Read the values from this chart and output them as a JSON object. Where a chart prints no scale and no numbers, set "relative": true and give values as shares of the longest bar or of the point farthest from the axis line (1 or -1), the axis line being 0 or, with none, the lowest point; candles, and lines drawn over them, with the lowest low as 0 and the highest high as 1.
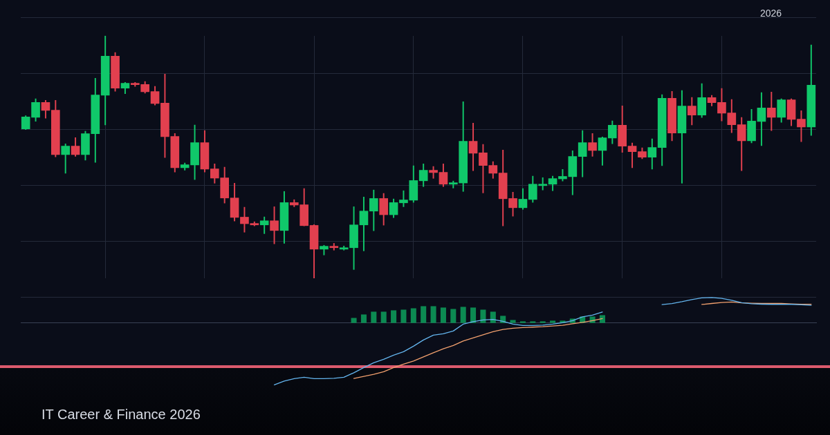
{
  "chart_data": [
    {
      "type": "candlestick",
      "relative": true,
      "grid": true,
      "categories": [
        null,
        null,
        null,
        null,
        null,
        null,
        null,
        null,
        null,
        null,
        null,
        null,
        null,
        null,
        null,
        null,
        null,
        null,
        null,
        null,
        null,
        null,
        null,
        null,
        null,
        null,
        null,
        null,
        null,
        null,
        null,
        null,
        null,
        null,
        null,
        null,
        null,
        null,
        null,
        null,
        null,
        null,
        null,
        null,
        null,
        null,
        null,
        null,
        null,
        null,
        null,
        null,
        null,
        null,
        null,
        null,
        null,
        null,
        null,
        null,
        null,
        null,
        null,
        null,
        null,
        null,
        null,
        null,
        null,
        null,
        null,
        null,
        null,
        null,
        null,
        null,
        null,
        null,
        null,
        null
      ],
      "ohlc": [
        [
          0.615,
          0.67,
          0.613,
          0.666
        ],
        [
          0.663,
          0.74,
          0.647,
          0.726
        ],
        [
          0.726,
          0.734,
          0.66,
          0.691
        ],
        [
          0.694,
          0.734,
          0.501,
          0.509
        ],
        [
          0.509,
          0.554,
          0.433,
          0.546
        ],
        [
          0.546,
          0.58,
          0.503,
          0.509
        ],
        [
          0.509,
          0.606,
          0.487,
          0.597
        ],
        [
          0.595,
          0.825,
          0.478,
          0.757
        ],
        [
          0.754,
          1.0,
          0.632,
          0.917
        ],
        [
          0.917,
          0.931,
          0.771,
          0.783
        ],
        [
          0.783,
          0.808,
          0.761,
          0.805
        ],
        [
          0.805,
          0.808,
          0.791,
          0.797
        ],
        [
          0.8,
          0.811,
          0.763,
          0.768
        ],
        [
          0.771,
          0.791,
          0.714,
          0.72
        ],
        [
          0.723,
          0.842,
          0.498,
          0.583
        ],
        [
          0.586,
          0.597,
          0.438,
          0.455
        ],
        [
          0.455,
          0.475,
          0.446,
          0.469
        ],
        [
          0.466,
          0.632,
          0.407,
          0.56
        ],
        [
          0.56,
          0.609,
          0.438,
          0.449
        ],
        [
          0.452,
          0.472,
          0.392,
          0.412
        ],
        [
          0.415,
          0.458,
          0.31,
          0.33
        ],
        [
          0.332,
          0.392,
          0.236,
          0.25
        ],
        [
          0.253,
          0.293,
          0.19,
          0.224
        ],
        [
          0.227,
          0.233,
          0.216,
          0.219
        ],
        [
          0.219,
          0.253,
          0.184,
          0.238
        ],
        [
          0.238,
          0.295,
          0.142,
          0.196
        ],
        [
          0.196,
          0.358,
          0.144,
          0.313
        ],
        [
          0.313,
          0.324,
          0.295,
          0.301
        ],
        [
          0.304,
          0.37,
          0.216,
          0.216
        ],
        [
          0.219,
          0.221,
          0.0,
          0.119
        ],
        [
          0.119,
          0.136,
          0.096,
          0.133
        ],
        [
          0.133,
          0.144,
          0.116,
          0.125
        ],
        [
          0.119,
          0.133,
          0.116,
          0.127
        ],
        [
          0.125,
          0.295,
          0.036,
          0.221
        ],
        [
          0.219,
          0.335,
          0.113,
          0.278
        ],
        [
          0.276,
          0.364,
          0.196,
          0.33
        ],
        [
          0.33,
          0.35,
          0.219,
          0.261
        ],
        [
          0.261,
          0.327,
          0.25,
          0.313
        ],
        [
          0.31,
          0.361,
          0.295,
          0.324
        ],
        [
          0.321,
          0.464,
          0.313,
          0.404
        ],
        [
          0.401,
          0.472,
          0.378,
          0.446
        ],
        [
          0.446,
          0.461,
          0.412,
          0.435
        ],
        [
          0.438,
          0.472,
          0.378,
          0.387
        ],
        [
          0.387,
          0.401,
          0.372,
          0.395
        ],
        [
          0.392,
          0.728,
          0.358,
          0.566
        ],
        [
          0.566,
          0.64,
          0.444,
          0.515
        ],
        [
          0.518,
          0.552,
          0.352,
          0.464
        ],
        [
          0.466,
          0.481,
          0.412,
          0.432
        ],
        [
          0.435,
          0.529,
          0.216,
          0.327
        ],
        [
          0.33,
          0.355,
          0.256,
          0.29
        ],
        [
          0.29,
          0.37,
          0.284,
          0.327
        ],
        [
          0.324,
          0.421,
          0.313,
          0.389
        ],
        [
          0.381,
          0.415,
          0.364,
          0.389
        ],
        [
          0.387,
          0.421,
          0.361,
          0.412
        ],
        [
          0.409,
          0.449,
          0.401,
          0.421
        ],
        [
          0.418,
          0.526,
          0.344,
          0.503
        ],
        [
          0.501,
          0.609,
          0.418,
          0.56
        ],
        [
          0.56,
          0.597,
          0.503,
          0.526
        ],
        [
          0.526,
          0.583,
          0.466,
          0.58
        ],
        [
          0.577,
          0.649,
          0.555,
          0.632
        ],
        [
          0.632,
          0.711,
          0.519,
          0.544
        ],
        [
          0.546,
          0.558,
          0.456,
          0.521
        ],
        [
          0.523,
          0.538,
          0.493,
          0.498
        ],
        [
          0.498,
          0.575,
          0.45,
          0.54
        ],
        [
          0.538,
          0.757,
          0.464,
          0.743
        ],
        [
          0.743,
          0.771,
          0.567,
          0.598
        ],
        [
          0.598,
          0.774,
          0.392,
          0.711
        ],
        [
          0.711,
          0.746,
          0.632,
          0.672
        ],
        [
          0.672,
          0.803,
          0.663,
          0.746
        ],
        [
          0.746,
          0.754,
          0.711,
          0.723
        ],
        [
          0.726,
          0.783,
          0.649,
          0.68
        ],
        [
          0.683,
          0.737,
          0.6,
          0.632
        ],
        [
          0.634,
          0.663,
          0.444,
          0.566
        ],
        [
          0.566,
          0.697,
          0.558,
          0.649
        ],
        [
          0.646,
          0.766,
          0.547,
          0.703
        ],
        [
          0.703,
          0.768,
          0.609,
          0.663
        ],
        [
          0.663,
          0.74,
          0.643,
          0.737
        ],
        [
          0.737,
          0.74,
          0.629,
          0.654
        ],
        [
          0.657,
          0.691,
          0.563,
          0.623
        ],
        [
          0.623,
          0.962,
          0.589,
          0.797
        ]
      ],
      "colors": [
        "#10c86a",
        "#10c86a",
        "#e2404f",
        "#e2404f",
        "#10c86a",
        "#e2404f",
        "#10c86a",
        "#10c86a",
        "#10c86a",
        "#e2404f",
        "#10c86a",
        "#e2404f",
        "#e2404f",
        "#e2404f",
        "#e2404f",
        "#e2404f",
        "#10c86a",
        "#10c86a",
        "#e2404f",
        "#e2404f",
        "#e2404f",
        "#e2404f",
        "#e2404f",
        "#e2404f",
        "#10c86a",
        "#e2404f",
        "#10c86a",
        "#e2404f",
        "#e2404f",
        "#e2404f",
        "#10c86a",
        "#e2404f",
        "#10c86a",
        "#10c86a",
        "#10c86a",
        "#10c86a",
        "#e2404f",
        "#10c86a",
        "#10c86a",
        "#10c86a",
        "#10c86a",
        "#e2404f",
        "#e2404f",
        "#10c86a",
        "#10c86a",
        "#e2404f",
        "#e2404f",
        "#e2404f",
        "#e2404f",
        "#e2404f",
        "#10c86a",
        "#10c86a",
        "#10c86a",
        "#10c86a",
        "#10c86a",
        "#10c86a",
        "#10c86a",
        "#e2404f",
        "#10c86a",
        "#10c86a",
        "#e2404f",
        "#e2404f",
        "#e2404f",
        "#10c86a",
        "#10c86a",
        "#e2404f",
        "#10c86a",
        "#e2404f",
        "#10c86a",
        "#e2404f",
        "#e2404f",
        "#e2404f",
        "#e2404f",
        "#10c86a",
        "#10c86a",
        "#e2404f",
        "#10c86a",
        "#e2404f",
        "#e2404f",
        "#10c86a"
      ],
      "annotations": [
        "2026",
        "IT Career & Finance 2026"
      ]
    },
    {
      "type": "bar",
      "relative": true,
      "marker": "none",
      "categories": [
        null,
        null,
        null,
        null,
        null,
        null,
        null,
        null,
        null,
        null,
        null,
        null,
        null,
        null,
        null,
        null,
        null,
        null,
        null,
        null,
        null,
        null,
        null,
        null,
        null,
        null,
        null,
        null,
        null,
        null,
        null,
        null,
        null,
        null,
        null,
        null,
        null,
        null,
        null,
        null,
        null,
        null,
        null,
        null,
        null,
        null,
        null,
        null,
        null,
        null,
        null,
        null,
        null,
        null,
        null,
        null,
        null,
        null,
        null,
        null,
        null,
        null,
        null,
        null,
        null,
        null,
        null,
        null,
        null,
        null,
        null,
        null,
        null,
        null,
        null,
        null,
        null,
        null,
        null,
        null
      ],
      "series": [
        {
          "type": "bar",
          "color": "#0c8a52",
          "values": [
            null,
            null,
            null,
            null,
            null,
            null,
            null,
            null,
            null,
            null,
            null,
            null,
            null,
            null,
            null,
            null,
            null,
            null,
            null,
            null,
            null,
            null,
            null,
            null,
            null,
            null,
            null,
            null,
            null,
            null,
            null,
            null,
            null,
            0.081,
            0.137,
            0.182,
            0.182,
            0.204,
            0.215,
            0.237,
            0.271,
            0.271,
            0.249,
            0.226,
            0.26,
            0.249,
            0.215,
            0.182,
            0.115,
            0.048,
            0.026,
            0.026,
            0.026,
            0.037,
            0.037,
            0.07,
            0.104,
            0.104,
            0.126,
            null,
            null,
            null,
            null,
            null,
            null,
            null,
            null,
            null,
            null,
            null,
            null,
            null,
            null,
            null,
            null,
            null,
            null,
            null,
            null,
            null
          ]
        },
        {
          "type": "line",
          "color": "#64b5ee",
          "values": [
            null,
            null,
            null,
            null,
            null,
            null,
            null,
            null,
            null,
            null,
            null,
            null,
            null,
            null,
            null,
            null,
            null,
            null,
            null,
            null,
            null,
            null,
            null,
            null,
            null,
            -1.0,
            -0.939,
            -0.9,
            -0.877,
            -0.9,
            -0.9,
            -0.894,
            -0.877,
            -0.805,
            -0.721,
            -0.643,
            -0.588,
            -0.521,
            -0.465,
            -0.376,
            -0.275,
            -0.197,
            -0.175,
            -0.13,
            -0.019,
            0.02,
            0.048,
            0.056,
            0.026,
            -0.019,
            -0.041,
            -0.041,
            -0.036,
            -0.019,
            0.003,
            0.037,
            0.098,
            0.126,
            0.176,
            null,
            null,
            null,
            null,
            null,
            0.297,
            0.313,
            0.343,
            0.377,
            0.405,
            0.412,
            0.398,
            0.366,
            0.327,
            0.31,
            0.304,
            0.301,
            0.301,
            0.301,
            0.293,
            0.285
          ]
        },
        {
          "type": "line",
          "color": "#f2a06e",
          "values": [
            null,
            null,
            null,
            null,
            null,
            null,
            null,
            null,
            null,
            null,
            null,
            null,
            null,
            null,
            null,
            null,
            null,
            null,
            null,
            null,
            null,
            null,
            null,
            null,
            null,
            null,
            null,
            null,
            null,
            null,
            null,
            null,
            null,
            -0.896,
            -0.864,
            -0.829,
            -0.788,
            -0.721,
            -0.666,
            -0.615,
            -0.548,
            -0.482,
            -0.417,
            -0.365,
            -0.292,
            -0.242,
            -0.192,
            -0.142,
            -0.105,
            -0.086,
            -0.075,
            -0.067,
            -0.06,
            -0.049,
            -0.038,
            -0.013,
            0.01,
            0.037,
            0.07,
            null,
            null,
            null,
            null,
            null,
            null,
            null,
            null,
            null,
            0.299,
            0.315,
            0.331,
            0.338,
            0.324,
            0.318,
            0.315,
            0.315,
            0.315,
            0.308,
            0.302,
            0.301
          ]
        }
      ]
    }
  ]
}
